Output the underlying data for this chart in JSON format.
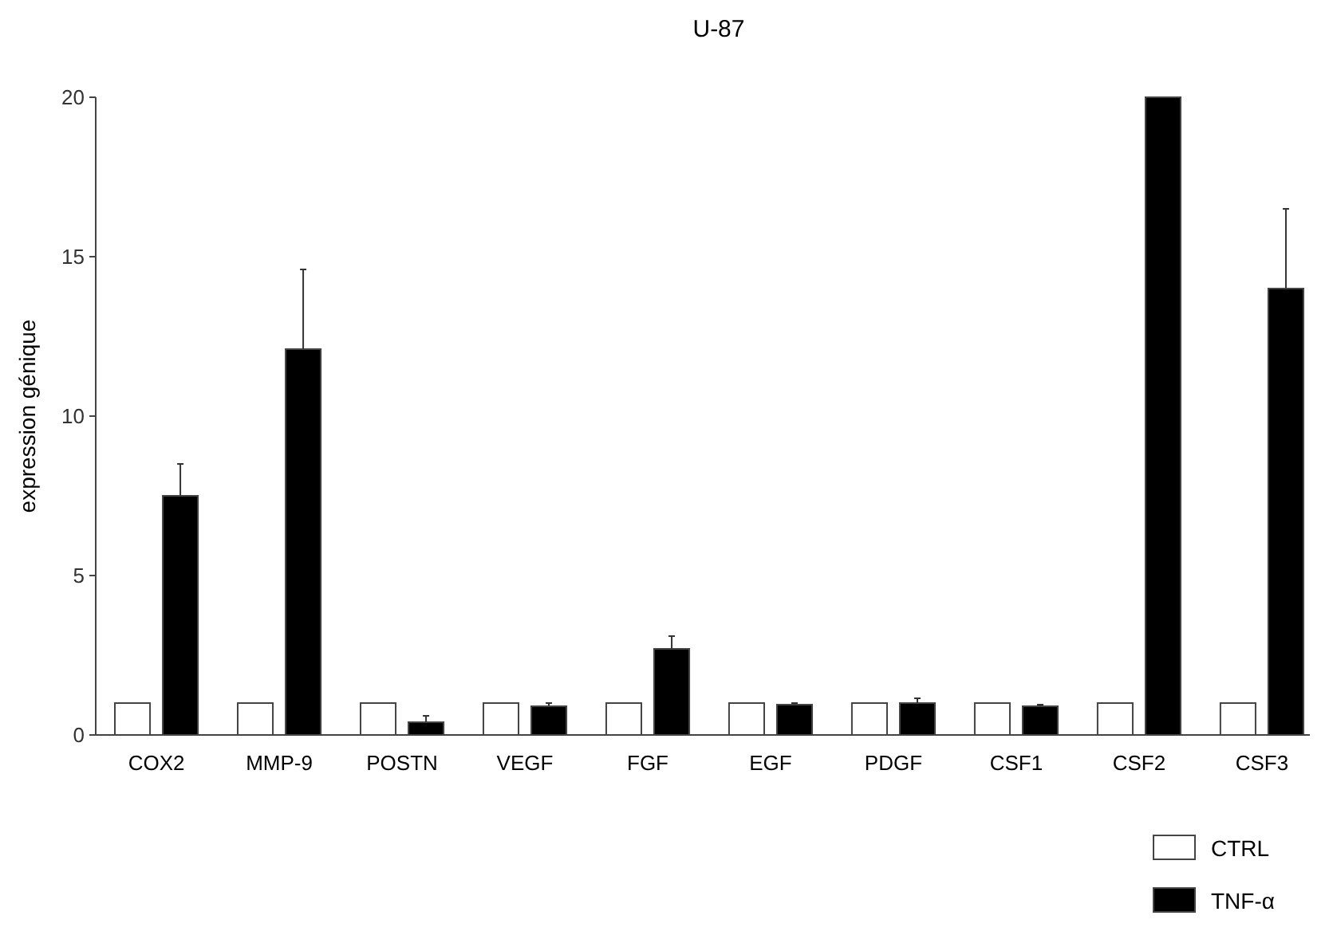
{
  "chart_data": {
    "type": "bar",
    "title": "U-87",
    "ylabel": "expression génique",
    "categories": [
      "COX2",
      "MMP-9",
      "POSTN",
      "VEGF",
      "FGF",
      "EGF",
      "PDGF",
      "CSF1",
      "CSF2",
      "CSF3"
    ],
    "series": [
      {
        "name": "CTRL",
        "color": "#ffffff",
        "values": [
          1,
          1,
          1,
          1,
          1,
          1,
          1,
          1,
          1,
          1
        ]
      },
      {
        "name": "TNF-α",
        "color": "#000000",
        "values": [
          7.5,
          12.1,
          0.4,
          0.9,
          2.7,
          0.95,
          1.0,
          0.9,
          20.0,
          14.0
        ],
        "errors": [
          1.0,
          2.5,
          0.2,
          0.1,
          0.4,
          0.05,
          0.15,
          0.05,
          null,
          2.5
        ]
      }
    ],
    "ylim": [
      0,
      20
    ],
    "yticks": [
      0,
      5,
      10,
      15,
      20
    ],
    "grid": false,
    "legend": "bottom right"
  }
}
